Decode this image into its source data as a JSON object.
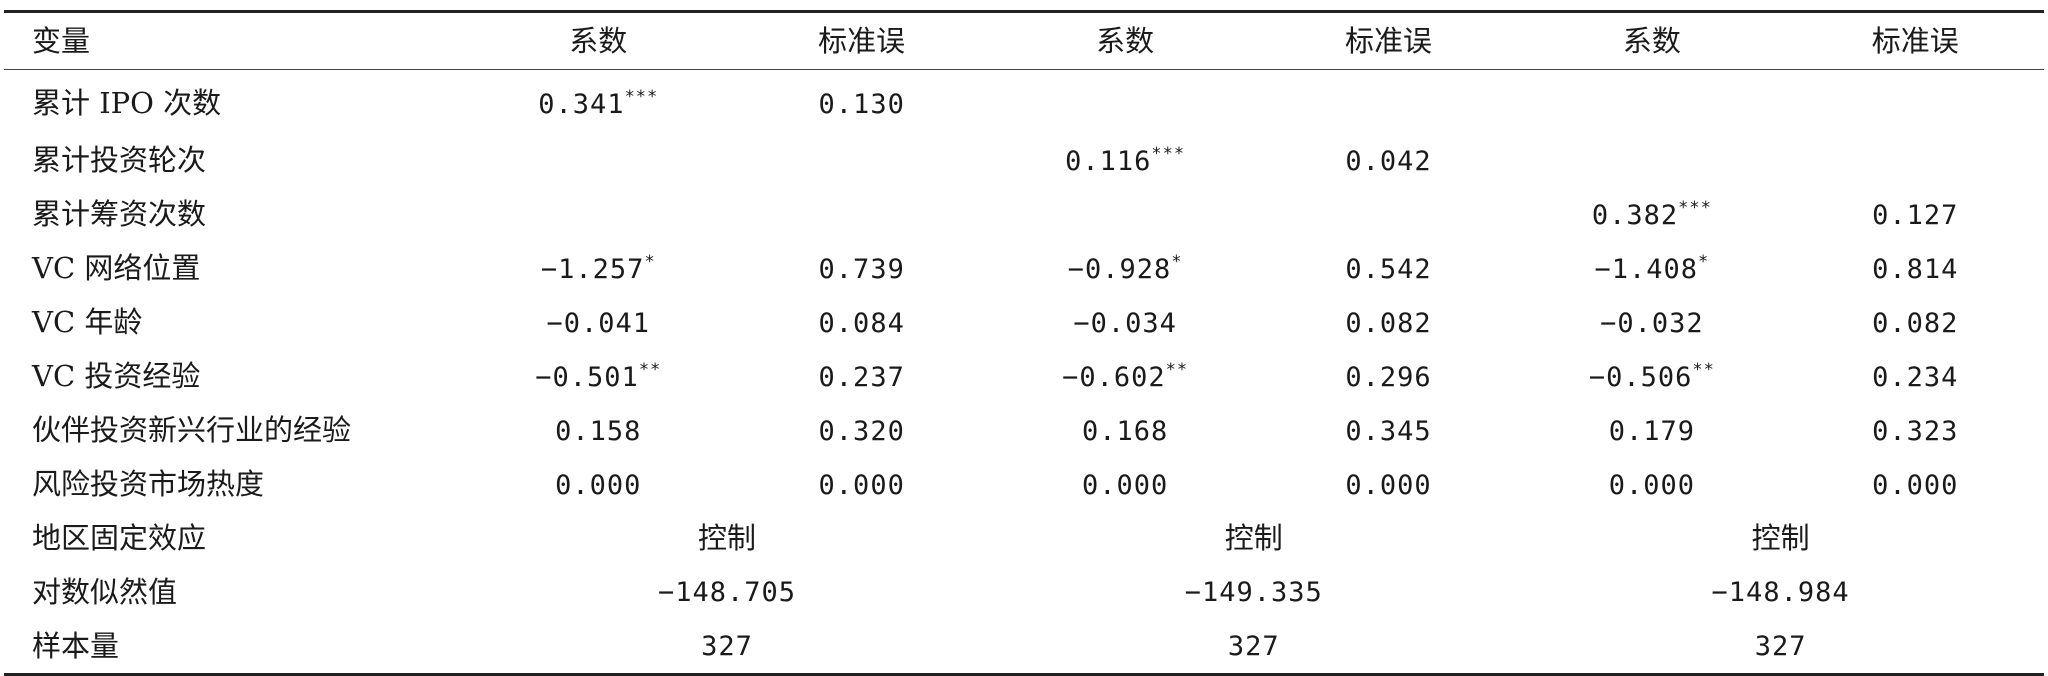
{
  "header": {
    "variable": "变量",
    "coef": "系数",
    "se": "标准误"
  },
  "rows": [
    {
      "label": "累计 IPO 次数",
      "cells": [
        {
          "v": "0.341",
          "s": "***"
        },
        {
          "v": "0.130",
          "s": ""
        },
        {
          "v": "",
          "s": ""
        },
        {
          "v": "",
          "s": ""
        },
        {
          "v": "",
          "s": ""
        },
        {
          "v": "",
          "s": ""
        }
      ]
    },
    {
      "label": "累计投资轮次",
      "cells": [
        {
          "v": "",
          "s": ""
        },
        {
          "v": "",
          "s": ""
        },
        {
          "v": "0.116",
          "s": "***"
        },
        {
          "v": "0.042",
          "s": ""
        },
        {
          "v": "",
          "s": ""
        },
        {
          "v": "",
          "s": ""
        }
      ]
    },
    {
      "label": "累计筹资次数",
      "cells": [
        {
          "v": "",
          "s": ""
        },
        {
          "v": "",
          "s": ""
        },
        {
          "v": "",
          "s": ""
        },
        {
          "v": "",
          "s": ""
        },
        {
          "v": "0.382",
          "s": "***"
        },
        {
          "v": "0.127",
          "s": ""
        }
      ]
    },
    {
      "label": "VC 网络位置",
      "cells": [
        {
          "v": "−1.257",
          "s": "*"
        },
        {
          "v": "0.739",
          "s": ""
        },
        {
          "v": "−0.928",
          "s": "*"
        },
        {
          "v": "0.542",
          "s": ""
        },
        {
          "v": "−1.408",
          "s": "*"
        },
        {
          "v": "0.814",
          "s": ""
        }
      ]
    },
    {
      "label": "VC 年龄",
      "cells": [
        {
          "v": "−0.041",
          "s": ""
        },
        {
          "v": "0.084",
          "s": ""
        },
        {
          "v": "−0.034",
          "s": ""
        },
        {
          "v": "0.082",
          "s": ""
        },
        {
          "v": "−0.032",
          "s": ""
        },
        {
          "v": "0.082",
          "s": ""
        }
      ]
    },
    {
      "label": "VC 投资经验",
      "cells": [
        {
          "v": "−0.501",
          "s": "**"
        },
        {
          "v": "0.237",
          "s": ""
        },
        {
          "v": "−0.602",
          "s": "**"
        },
        {
          "v": "0.296",
          "s": ""
        },
        {
          "v": "−0.506",
          "s": "**"
        },
        {
          "v": "0.234",
          "s": ""
        }
      ]
    },
    {
      "label": "伙伴投资新兴行业的经验",
      "cells": [
        {
          "v": "0.158",
          "s": ""
        },
        {
          "v": "0.320",
          "s": ""
        },
        {
          "v": "0.168",
          "s": ""
        },
        {
          "v": "0.345",
          "s": ""
        },
        {
          "v": "0.179",
          "s": ""
        },
        {
          "v": "0.323",
          "s": ""
        }
      ]
    },
    {
      "label": "风险投资市场热度",
      "cells": [
        {
          "v": "0.000",
          "s": ""
        },
        {
          "v": "0.000",
          "s": ""
        },
        {
          "v": "0.000",
          "s": ""
        },
        {
          "v": "0.000",
          "s": ""
        },
        {
          "v": "0.000",
          "s": ""
        },
        {
          "v": "0.000",
          "s": ""
        }
      ]
    }
  ],
  "span_rows": [
    {
      "label": "地区固定效应",
      "values": [
        "控制",
        "控制",
        "控制"
      ],
      "numeric": false
    },
    {
      "label": "对数似然值",
      "values": [
        "−148.705",
        "−149.335",
        "−148.984"
      ],
      "numeric": true
    },
    {
      "label": "样本量",
      "values": [
        "327",
        "327",
        "327"
      ],
      "numeric": true
    }
  ]
}
